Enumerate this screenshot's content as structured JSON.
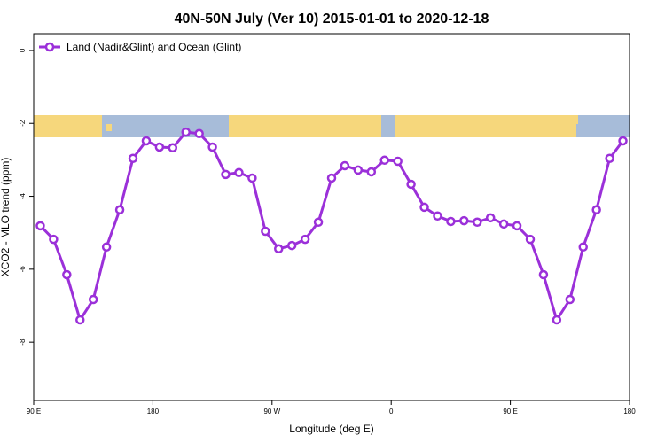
{
  "chart_data": {
    "type": "line",
    "title": "40N-50N July (Ver 10)   2015-01-01 to 2020-12-18",
    "x_label": "Longitude (deg E)",
    "y_label": "XCO2 - MLO trend (ppm)",
    "x": [
      95,
      105,
      115,
      125,
      135,
      145,
      155,
      165,
      175,
      185,
      195,
      205,
      215,
      225,
      235,
      245,
      255,
      265,
      275,
      285,
      295,
      305,
      315,
      325,
      335,
      345,
      355,
      365,
      375,
      385,
      395,
      405,
      415,
      425,
      435,
      445,
      455,
      465,
      475,
      485,
      495,
      505,
      515,
      525,
      535
    ],
    "series": [
      {
        "name": "Land (Nadir&Glint) and Ocean (Glint)",
        "color": "#9b30d9",
        "values": [
          -4.81,
          -5.18,
          -6.15,
          -7.39,
          -6.83,
          -5.39,
          -4.37,
          -2.96,
          -2.48,
          -2.65,
          -2.67,
          -2.24,
          -2.28,
          -2.65,
          -3.4,
          -3.35,
          -3.5,
          -4.96,
          -5.44,
          -5.35,
          -5.18,
          -4.71,
          -3.5,
          -3.16,
          -3.28,
          -3.33,
          -3.01,
          -3.04,
          -3.67,
          -4.3,
          -4.54,
          -4.69,
          -4.67,
          -4.71,
          -4.59,
          -4.76,
          -4.81,
          -5.18,
          -6.15,
          -7.39,
          -6.83,
          -5.39,
          -4.37,
          -2.96,
          -2.48
        ]
      }
    ],
    "xlim": [
      90,
      540
    ],
    "xticks": [
      {
        "value": 90,
        "label": "90 E"
      },
      180,
      {
        "value": 270,
        "label": "90 W"
      },
      {
        "value": 360,
        "label": "0"
      },
      {
        "value": 450,
        "label": "90 E"
      },
      {
        "value": 540,
        "label": "180"
      }
    ],
    "ylim": [
      -9.6,
      0.46
    ],
    "yticks": [
      0,
      -2,
      -4,
      -6,
      -8
    ],
    "legend": "upper left"
  }
}
